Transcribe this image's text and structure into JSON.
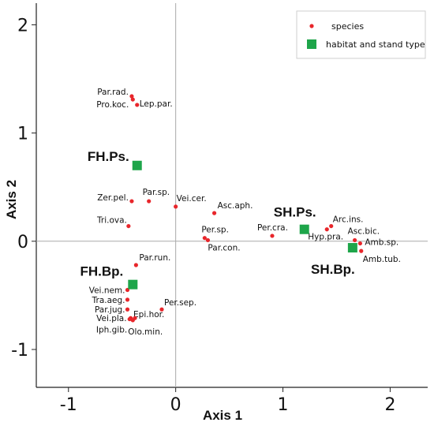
{
  "chart_data": {
    "type": "scatter",
    "title": "",
    "xlabel": "Axis 1",
    "ylabel": "Axis 2",
    "xlim": [
      -1.3,
      2.35
    ],
    "ylim": [
      -1.35,
      2.2
    ],
    "xticks": [
      "-1",
      "0",
      "1",
      "2"
    ],
    "yticks": [
      "-1",
      "0",
      "1",
      "2"
    ],
    "xtick_values": [
      -1,
      0,
      1,
      2
    ],
    "ytick_values": [
      -1,
      0,
      1,
      2
    ],
    "zero_lines": true,
    "legend": {
      "placement": "top-right",
      "entries": [
        "species",
        "habitat and stand type"
      ]
    },
    "colors": {
      "species": "#e8262b",
      "habitat": "#1ea54a",
      "zero_line": "#aaaaaa"
    },
    "series": [
      {
        "name": "species",
        "marker": "circle",
        "points": [
          {
            "label": "Par.rad.",
            "x": -0.41,
            "y": 1.34
          },
          {
            "label": "Pro.koc.",
            "x": -0.4,
            "y": 1.31
          },
          {
            "label": "Lep.par.",
            "x": -0.36,
            "y": 1.26
          },
          {
            "label": "Zer.pel.",
            "x": -0.41,
            "y": 0.37
          },
          {
            "label": "Par.sp.",
            "x": -0.25,
            "y": 0.37
          },
          {
            "label": "Vei.cer.",
            "x": 0.0,
            "y": 0.32
          },
          {
            "label": "Asc.aph.",
            "x": 0.36,
            "y": 0.26
          },
          {
            "label": "Tri.ova.",
            "x": -0.44,
            "y": 0.14
          },
          {
            "label": "Per.sp.",
            "x": 0.27,
            "y": 0.03
          },
          {
            "label": "Par.con.",
            "x": 0.3,
            "y": 0.01
          },
          {
            "label": "Per.cra.",
            "x": 0.9,
            "y": 0.05
          },
          {
            "label": "Arc.ins.",
            "x": 1.45,
            "y": 0.14
          },
          {
            "label": "Hyp.pra.",
            "x": 1.41,
            "y": 0.11
          },
          {
            "label": "Asc.bic.",
            "x": 1.67,
            "y": 0.01
          },
          {
            "label": "Amb.sp.",
            "x": 1.72,
            "y": -0.02
          },
          {
            "label": "Amb.tub.",
            "x": 1.73,
            "y": -0.09
          },
          {
            "label": "Par.run.",
            "x": -0.37,
            "y": -0.22
          },
          {
            "label": "Vei.nem.",
            "x": -0.45,
            "y": -0.45
          },
          {
            "label": "Tra.aeg.",
            "x": -0.45,
            "y": -0.54
          },
          {
            "label": "Par.jug.",
            "x": -0.45,
            "y": -0.63
          },
          {
            "label": "Per.sep.",
            "x": -0.13,
            "y": -0.63
          },
          {
            "label": "Epi.hor.",
            "x": -0.38,
            "y": -0.71
          },
          {
            "label": "Vei.pla.",
            "x": -0.42,
            "y": -0.71
          },
          {
            "label": "Olo.min.",
            "x": -0.4,
            "y": -0.73
          },
          {
            "label": "Iph.gib.",
            "x": -0.43,
            "y": -0.72
          }
        ]
      },
      {
        "name": "habitat and stand type",
        "marker": "square",
        "points": [
          {
            "label": "FH.Ps.",
            "x": -0.36,
            "y": 0.7
          },
          {
            "label": "SH.Ps.",
            "x": 1.2,
            "y": 0.11
          },
          {
            "label": "SH.Bp.",
            "x": 1.65,
            "y": -0.06
          },
          {
            "label": "FH.Bp.",
            "x": -0.4,
            "y": -0.4
          }
        ]
      }
    ]
  }
}
